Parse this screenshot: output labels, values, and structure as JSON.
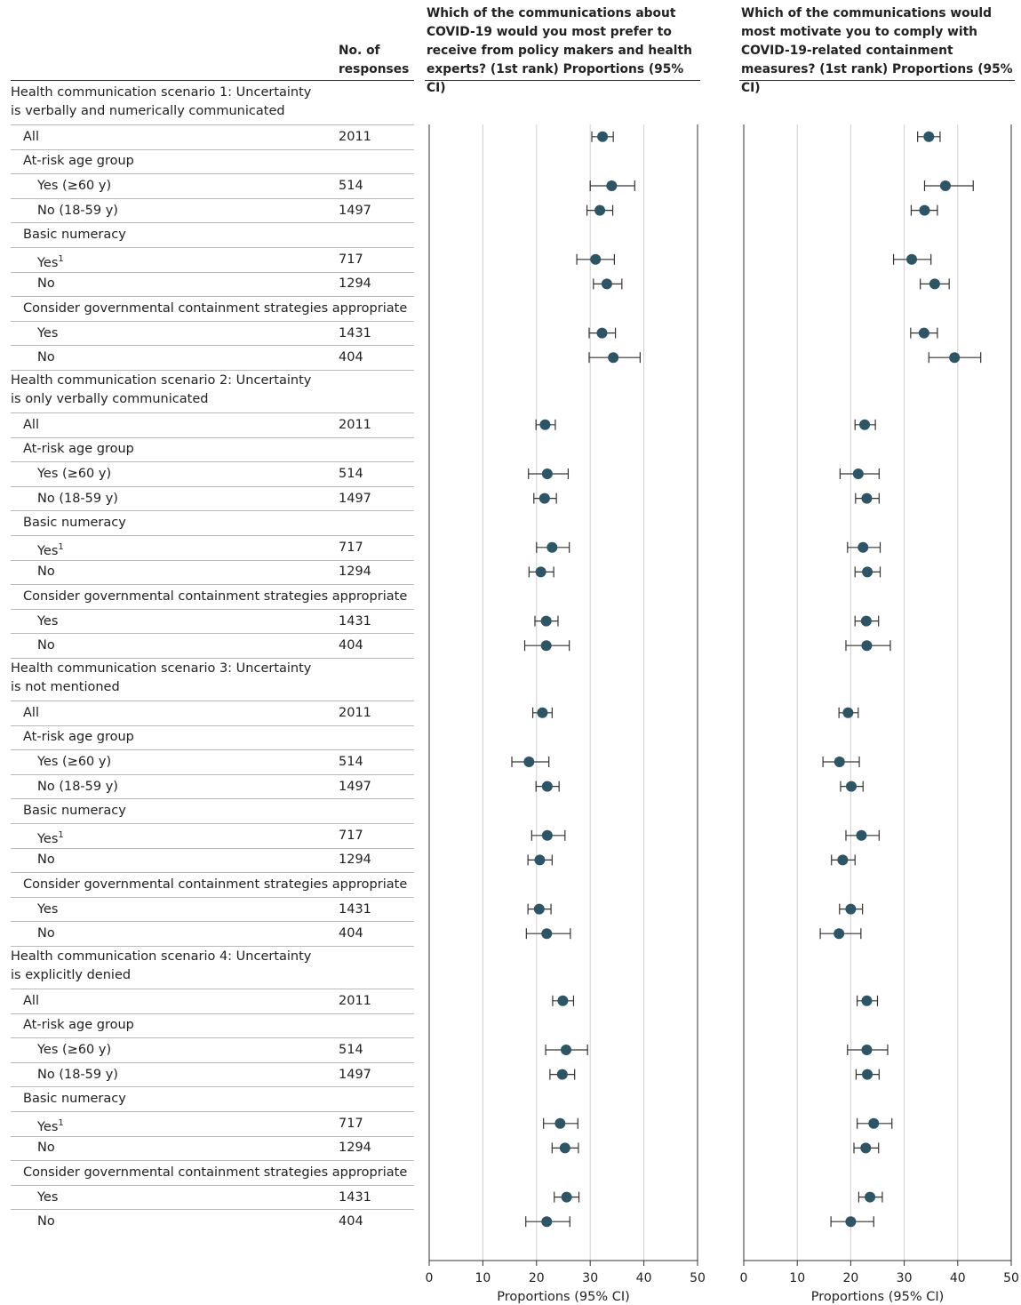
{
  "header": {
    "responses_label": "No. of responses",
    "panel1_title": "Which of the communications about COVID-19 would you most prefer to receive from policy makers and health experts? (1st rank) Proportions (95% CI)",
    "panel2_title": "Which of the communications would most motivate you to comply with COVID-19-related containment measures? (1st rank) Proportions (95% CI)"
  },
  "axis_label": "Proportions (95% CI)",
  "colors": {
    "marker": "#2e5566",
    "grid": "#d0d0d0",
    "whisker": "#333333"
  },
  "chart_data": {
    "type": "forest",
    "xlim": [
      0,
      50
    ],
    "xticks": [
      "0",
      "10",
      "20",
      "30",
      "40",
      "50"
    ],
    "panels": [
      {
        "title": "Which of the communications about COVID-19 would you most prefer to receive from policy makers and health experts? (1st rank) Proportions (95% CI)",
        "xlabel": "Proportions (95% CI)"
      },
      {
        "title": "Which of the communications would most motivate you to comply with COVID-19-related containment measures? (1st rank) Proportions (95% CI)",
        "xlabel": "Proportions (95% CI)"
      }
    ],
    "scenarios": [
      {
        "title": "Health communication scenario 1: Uncertainty is verbally and numerically communicated",
        "rows": [
          {
            "label": "All",
            "sup": "",
            "indent": 1,
            "n": "2011",
            "p1": [
              32.3,
              30.3,
              34.3
            ],
            "p2": [
              34.6,
              32.5,
              36.7
            ]
          },
          {
            "label": "At-risk age group",
            "indent": 1,
            "group": true
          },
          {
            "label": "Yes (≥60 y)",
            "sup": "",
            "indent": 2,
            "n": "514",
            "p1": [
              34.0,
              30.0,
              38.3
            ],
            "p2": [
              37.7,
              33.8,
              42.9
            ]
          },
          {
            "label": "No (18-59 y)",
            "sup": "",
            "indent": 2,
            "n": "1497",
            "p1": [
              31.8,
              29.4,
              34.2
            ],
            "p2": [
              33.8,
              31.3,
              36.2
            ]
          },
          {
            "label": "Basic numeracy",
            "indent": 1,
            "group": true
          },
          {
            "label": "Yes",
            "sup": "1",
            "indent": 2,
            "n": "717",
            "p1": [
              31.0,
              27.5,
              34.5
            ],
            "p2": [
              31.4,
              28.0,
              35.0
            ]
          },
          {
            "label": "No",
            "sup": "",
            "indent": 2,
            "n": "1294",
            "p1": [
              33.1,
              30.6,
              35.9
            ],
            "p2": [
              35.7,
              33.0,
              38.4
            ]
          },
          {
            "label": "Consider governmental containment strategies appropriate",
            "indent": 1,
            "group": true
          },
          {
            "label": "Yes",
            "sup": "",
            "indent": 2,
            "n": "1431",
            "p1": [
              32.2,
              29.8,
              34.7
            ],
            "p2": [
              33.7,
              31.2,
              36.2
            ]
          },
          {
            "label": "No",
            "sup": "",
            "indent": 2,
            "n": "404",
            "p1": [
              34.3,
              29.8,
              39.3
            ],
            "p2": [
              39.4,
              34.6,
              44.3
            ]
          }
        ]
      },
      {
        "title": "Health communication scenario 2: Uncertainty is only verbally communicated",
        "rows": [
          {
            "label": "All",
            "sup": "",
            "indent": 1,
            "n": "2011",
            "p1": [
              21.6,
              19.9,
              23.5
            ],
            "p2": [
              22.6,
              20.8,
              24.6
            ]
          },
          {
            "label": "At-risk age group",
            "indent": 1,
            "group": true
          },
          {
            "label": "Yes (≥60 y)",
            "sup": "",
            "indent": 2,
            "n": "514",
            "p1": [
              22.0,
              18.5,
              25.9
            ],
            "p2": [
              21.4,
              18.0,
              25.3
            ]
          },
          {
            "label": "No (18-59 y)",
            "sup": "",
            "indent": 2,
            "n": "1497",
            "p1": [
              21.5,
              19.5,
              23.7
            ],
            "p2": [
              23.0,
              20.9,
              25.3
            ]
          },
          {
            "label": "Basic numeracy",
            "indent": 1,
            "group": true
          },
          {
            "label": "Yes",
            "sup": "1",
            "indent": 2,
            "n": "717",
            "p1": [
              22.9,
              20.0,
              26.1
            ],
            "p2": [
              22.3,
              19.4,
              25.5
            ]
          },
          {
            "label": "No",
            "sup": "",
            "indent": 2,
            "n": "1294",
            "p1": [
              20.8,
              18.6,
              23.2
            ],
            "p2": [
              23.1,
              20.8,
              25.5
            ]
          },
          {
            "label": "Consider governmental containment strategies appropriate",
            "indent": 1,
            "group": true
          },
          {
            "label": "Yes",
            "sup": "",
            "indent": 2,
            "n": "1431",
            "p1": [
              21.8,
              19.7,
              24.0
            ],
            "p2": [
              22.9,
              20.8,
              25.2
            ]
          },
          {
            "label": "No",
            "sup": "",
            "indent": 2,
            "n": "404",
            "p1": [
              21.8,
              17.8,
              26.1
            ],
            "p2": [
              23.0,
              19.1,
              27.4
            ]
          }
        ]
      },
      {
        "title": "Health communication scenario 3: Uncertainty is not mentioned",
        "rows": [
          {
            "label": "All",
            "sup": "",
            "indent": 1,
            "n": "2011",
            "p1": [
              21.1,
              19.3,
              22.9
            ],
            "p2": [
              19.5,
              17.8,
              21.4
            ]
          },
          {
            "label": "At-risk age group",
            "indent": 1,
            "group": true
          },
          {
            "label": "Yes (≥60 y)",
            "sup": "",
            "indent": 2,
            "n": "514",
            "p1": [
              18.6,
              15.4,
              22.3
            ],
            "p2": [
              17.9,
              14.8,
              21.6
            ]
          },
          {
            "label": "No (18-59 y)",
            "sup": "",
            "indent": 2,
            "n": "1497",
            "p1": [
              22.0,
              19.9,
              24.2
            ],
            "p2": [
              20.1,
              18.1,
              22.3
            ]
          },
          {
            "label": "Basic numeracy",
            "indent": 1,
            "group": true
          },
          {
            "label": "Yes",
            "sup": "1",
            "indent": 2,
            "n": "717",
            "p1": [
              22.0,
              19.1,
              25.3
            ],
            "p2": [
              22.0,
              19.1,
              25.3
            ]
          },
          {
            "label": "No",
            "sup": "",
            "indent": 2,
            "n": "1294",
            "p1": [
              20.6,
              18.4,
              22.9
            ],
            "p2": [
              18.5,
              16.4,
              20.8
            ]
          },
          {
            "label": "Consider governmental containment strategies appropriate",
            "indent": 1,
            "group": true
          },
          {
            "label": "Yes",
            "sup": "",
            "indent": 2,
            "n": "1431",
            "p1": [
              20.5,
              18.4,
              22.7
            ],
            "p2": [
              20.0,
              17.9,
              22.2
            ]
          },
          {
            "label": "No",
            "sup": "",
            "indent": 2,
            "n": "404",
            "p1": [
              21.9,
              18.1,
              26.3
            ],
            "p2": [
              17.8,
              14.3,
              21.9
            ]
          }
        ]
      },
      {
        "title": "Health communication scenario 4: Uncertainty is explicitly denied",
        "rows": [
          {
            "label": "All",
            "sup": "",
            "indent": 1,
            "n": "2011",
            "p1": [
              24.9,
              23.0,
              26.9
            ],
            "p2": [
              23.0,
              21.2,
              25.0
            ]
          },
          {
            "label": "At-risk age group",
            "indent": 1,
            "group": true
          },
          {
            "label": "Yes (≥60 y)",
            "sup": "",
            "indent": 2,
            "n": "514",
            "p1": [
              25.5,
              21.7,
              29.5
            ],
            "p2": [
              23.0,
              19.4,
              26.9
            ]
          },
          {
            "label": "No (18-59 y)",
            "sup": "",
            "indent": 2,
            "n": "1497",
            "p1": [
              24.8,
              22.5,
              27.1
            ],
            "p2": [
              23.1,
              21.0,
              25.3
            ]
          },
          {
            "label": "Basic numeracy",
            "indent": 1,
            "group": true
          },
          {
            "label": "Yes",
            "sup": "1",
            "indent": 2,
            "n": "717",
            "p1": [
              24.4,
              21.3,
              27.7
            ],
            "p2": [
              24.3,
              21.2,
              27.7
            ]
          },
          {
            "label": "No",
            "sup": "",
            "indent": 2,
            "n": "1294",
            "p1": [
              25.3,
              22.9,
              27.8
            ],
            "p2": [
              22.8,
              20.6,
              25.2
            ]
          },
          {
            "label": "Consider governmental containment strategies appropriate",
            "indent": 1,
            "group": true
          },
          {
            "label": "Yes",
            "sup": "",
            "indent": 2,
            "n": "1431",
            "p1": [
              25.6,
              23.3,
              27.9
            ],
            "p2": [
              23.6,
              21.5,
              25.9
            ]
          },
          {
            "label": "No",
            "sup": "",
            "indent": 2,
            "n": "404",
            "p1": [
              21.9,
              18.0,
              26.2
            ],
            "p2": [
              20.0,
              16.3,
              24.3
            ]
          }
        ]
      }
    ]
  }
}
